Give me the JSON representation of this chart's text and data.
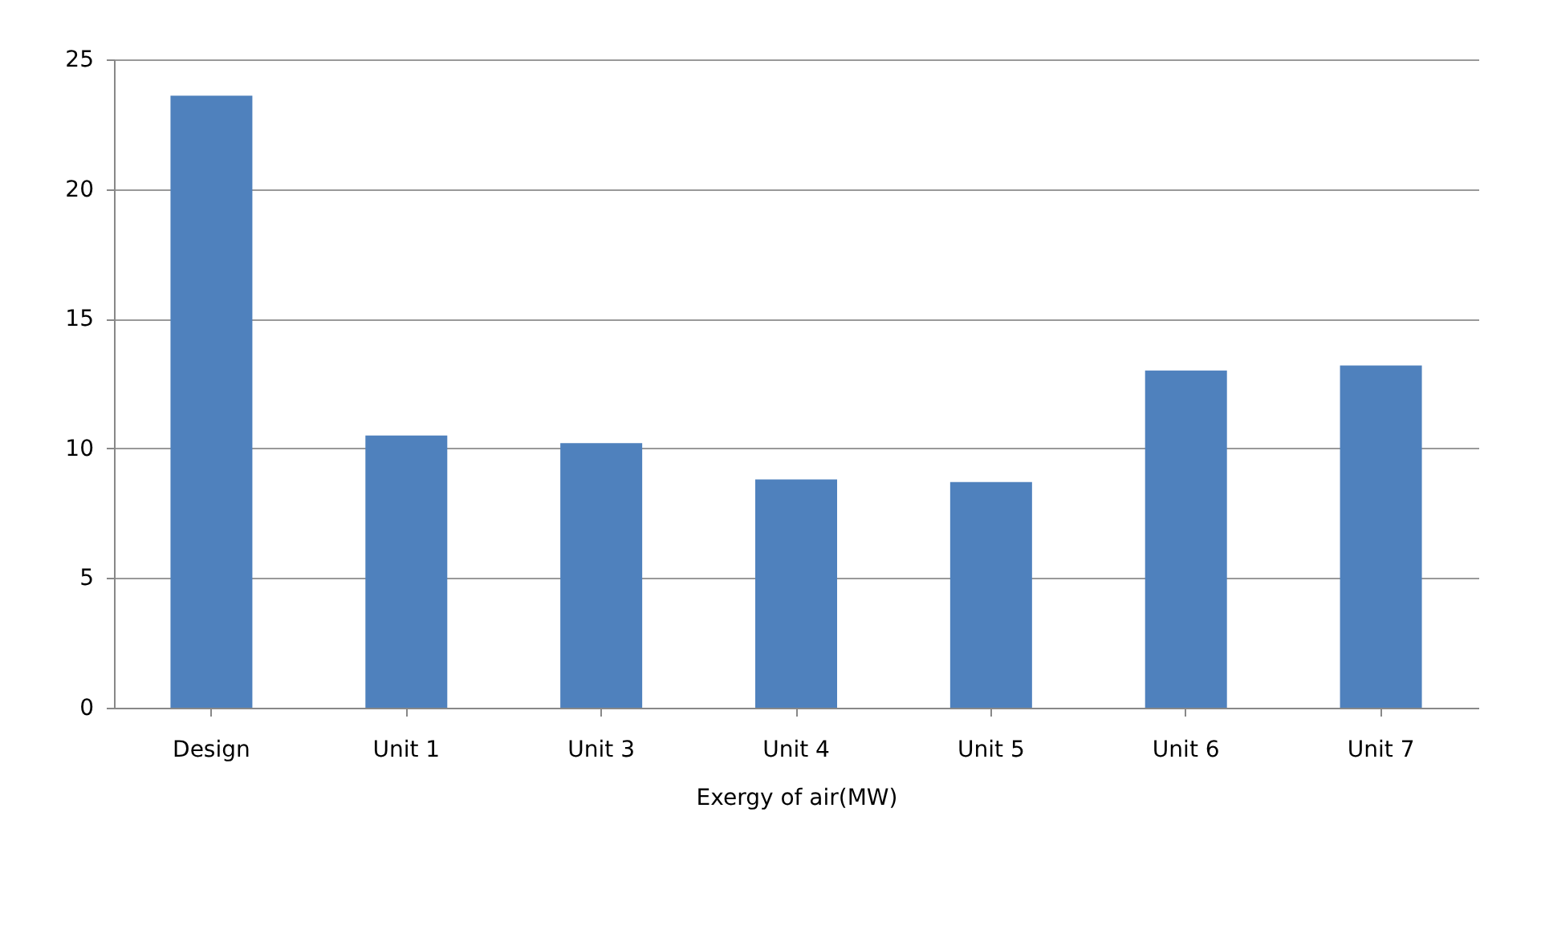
{
  "chart_data": {
    "type": "bar",
    "xlabel": "Exergy of air(MW)",
    "categories": [
      "Design",
      "Unit 1",
      "Unit 3",
      "Unit 4",
      "Unit 5",
      "Unit 6",
      "Unit 7"
    ],
    "values": [
      23.6,
      10.5,
      10.2,
      8.8,
      8.7,
      13.0,
      13.2
    ],
    "color": "#4f81bd",
    "ylim": [
      0,
      25
    ],
    "yticks": [
      0,
      5,
      10,
      15,
      20,
      25
    ],
    "grid": "y"
  }
}
